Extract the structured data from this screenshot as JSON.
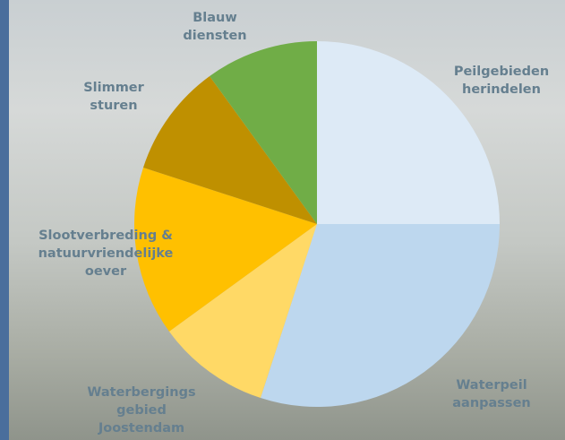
{
  "chart_data": {
    "type": "pie",
    "categories": [
      "Peilgebieden herindelen",
      "Waterpeil aanpassen",
      "Waterbergings gebied Joostendam",
      "Slootverbreding & natuurvriendelijke oever",
      "Slimmer sturen",
      "Blauw diensten"
    ],
    "values": [
      25,
      30,
      10,
      15,
      10,
      10
    ],
    "colors": [
      "#ddeaf6",
      "#bdd7ee",
      "#ffd966",
      "#ffc000",
      "#bf9000",
      "#70ad47"
    ]
  }
}
